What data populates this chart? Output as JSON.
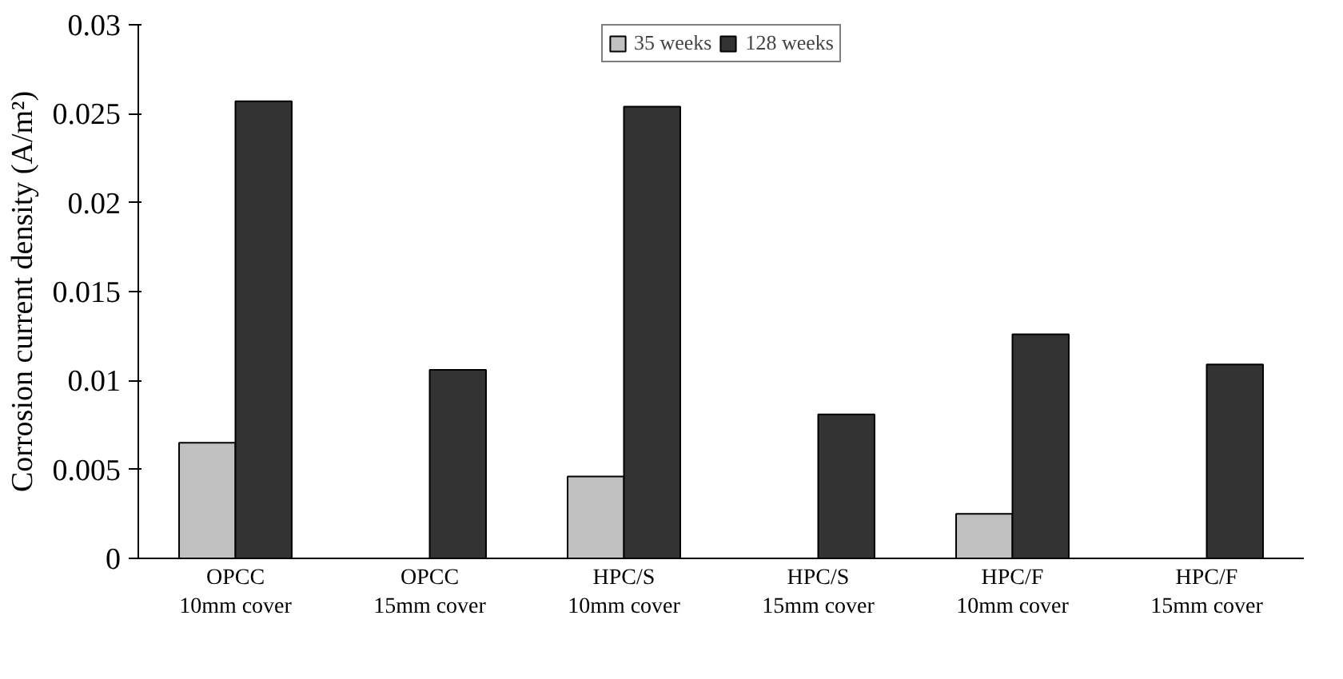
{
  "chart_data": {
    "type": "bar",
    "ylabel": "Corrosion current density (A/m²)",
    "categories": [
      "OPCC\n10mm cover",
      "OPCC\n15mm cover",
      "HPC/S\n10mm cover",
      "HPC/S\n15mm cover",
      "HPC/F\n10mm cover",
      "HPC/F\n15mm cover"
    ],
    "series": [
      {
        "name": "35 weeks",
        "color": "#c0c0c0",
        "values": [
          0.0065,
          null,
          0.0046,
          null,
          0.0025,
          null
        ]
      },
      {
        "name": "128 weeks",
        "color": "#333333",
        "values": [
          0.0257,
          0.0106,
          0.0254,
          0.0081,
          0.0126,
          0.0109
        ]
      }
    ],
    "ylim": [
      0,
      0.03
    ],
    "yticks": [
      0,
      0.005,
      0.01,
      0.015,
      0.02,
      0.025,
      0.03
    ],
    "grid": false,
    "legend": "top"
  }
}
